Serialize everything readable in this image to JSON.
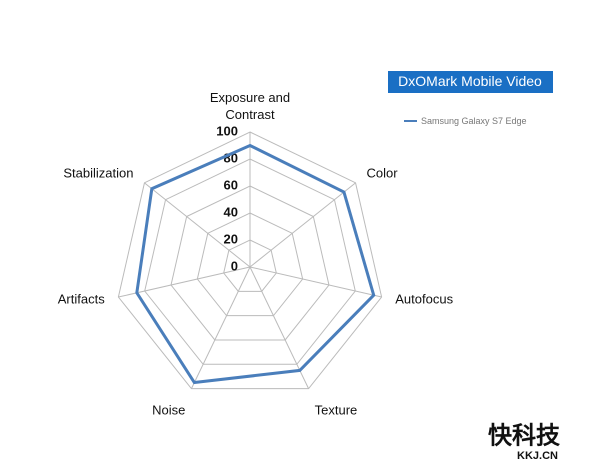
{
  "chart_data": {
    "type": "radar",
    "title": "DxOMark Mobile Video",
    "categories": [
      "Exposure and Contrast",
      "Color",
      "Autofocus",
      "Texture",
      "Noise",
      "Artifacts",
      "Stabilization"
    ],
    "series": [
      {
        "name": "Samsung Galaxy S7 Edge",
        "color": "#4a7ebb",
        "values": [
          90,
          89,
          94,
          85,
          95,
          86,
          93
        ]
      }
    ],
    "rlim": [
      0,
      100
    ],
    "rticks": [
      0,
      20,
      40,
      60,
      80,
      100
    ],
    "grid": true,
    "legend": "top-right"
  },
  "watermark": {
    "name": "快科技",
    "site": "KKJ.CN"
  }
}
